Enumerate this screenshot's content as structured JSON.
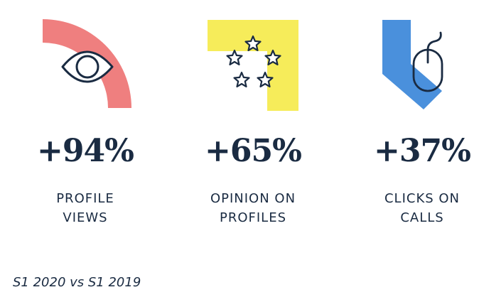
{
  "stats": [
    {
      "value": "+94%",
      "label_line1": "PROFILE",
      "label_line2": "VIEWS",
      "icon": "eye-icon",
      "color": "#ef7f7f"
    },
    {
      "value": "+65%",
      "label_line1": "OPINION ON",
      "label_line2": "PROFILES",
      "icon": "stars-icon",
      "color": "#f6ec5a"
    },
    {
      "value": "+37%",
      "label_line1": "CLICKS ON",
      "label_line2": "CALLS",
      "icon": "mouse-icon",
      "color": "#4a90dc"
    }
  ],
  "footnote": "S1 2020 vs S1 2019",
  "colors": {
    "text": "#1a2b42",
    "pink": "#ef7f7f",
    "yellow": "#f6ec5a",
    "blue": "#4a90dc"
  }
}
